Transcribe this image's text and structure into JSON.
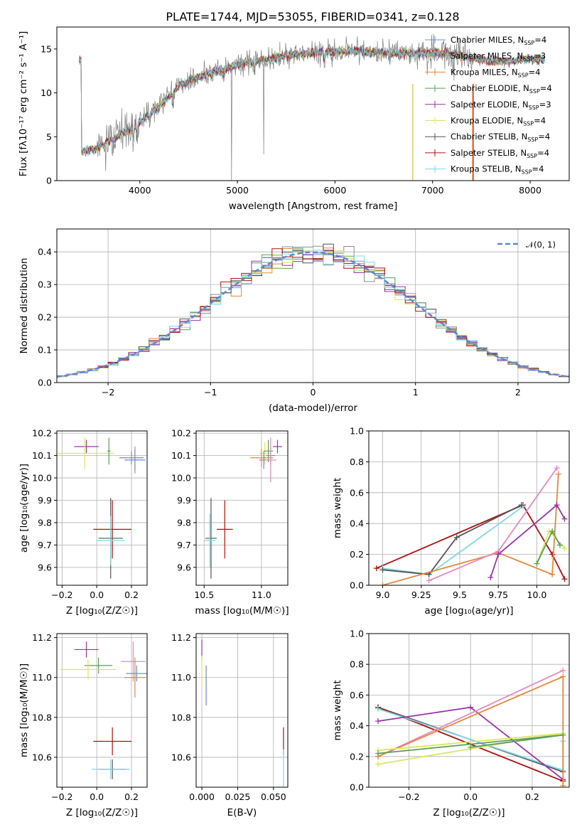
{
  "title": "PLATE=1744, MJD=53055, FIBERID=0341, z=0.128",
  "colors": {
    "Chabrier MILES": "#6b8fd6",
    "Salpeter MILES": "#8a8a8a",
    "Kroupa MILES": "#e8863a",
    "Chabrier ELODIE": "#5e9c5a",
    "Salpeter ELODIE": "#9933aa",
    "Kroupa ELODIE": "#d8e860",
    "Chabrier STELIB": "#555555",
    "Salpeter STELIB": "#b01010",
    "Kroupa STELIB": "#80d8e6"
  },
  "chart_data": [
    {
      "id": "spectrum",
      "type": "line",
      "title": "PLATE=1744, MJD=53055, FIBERID=0341, z=0.128",
      "xlabel": "wavelength [Angstrom, rest frame]",
      "ylabel": "Flux [fλ10⁻¹⁷ erg cm⁻² s⁻¹ A⁻¹]",
      "xlim": [
        3150,
        8400
      ],
      "ylim": [
        0,
        17.5
      ],
      "xticks": [
        4000,
        5000,
        6000,
        7000,
        8000
      ],
      "yticks": [
        0,
        5,
        10,
        15
      ],
      "grid": false,
      "legend_position": "right",
      "legend": [
        {
          "name": "Chabrier MILES",
          "nssp": "4"
        },
        {
          "name": "Salpeter MILES",
          "nssp": "3"
        },
        {
          "name": "Kroupa MILES",
          "nssp": "4"
        },
        {
          "name": "Chabrier ELODIE",
          "nssp": "4"
        },
        {
          "name": "Salpeter ELODIE",
          "nssp": "3"
        },
        {
          "name": "Kroupa ELODIE",
          "nssp": "4"
        },
        {
          "name": "Chabrier STELIB",
          "nssp": "4"
        },
        {
          "name": "Salpeter STELIB",
          "nssp": "4"
        },
        {
          "name": "Kroupa STELIB",
          "nssp": "4"
        }
      ],
      "continuum": [
        [
          3400,
          3.3
        ],
        [
          3550,
          3.6
        ],
        [
          3700,
          4.6
        ],
        [
          3850,
          5.5
        ],
        [
          3950,
          6.2
        ],
        [
          4100,
          7.6
        ],
        [
          4250,
          9.0
        ],
        [
          4400,
          10.8
        ],
        [
          4550,
          11.6
        ],
        [
          4700,
          12.2
        ],
        [
          4850,
          12.6
        ],
        [
          5000,
          13.2
        ],
        [
          5200,
          13.6
        ],
        [
          5400,
          14.0
        ],
        [
          5600,
          14.4
        ],
        [
          5800,
          14.6
        ],
        [
          6000,
          14.7
        ],
        [
          6200,
          14.8
        ],
        [
          6400,
          14.6
        ],
        [
          6600,
          14.5
        ],
        [
          6800,
          14.5
        ],
        [
          7000,
          14.6
        ],
        [
          7200,
          14.4
        ],
        [
          7400,
          14.0
        ],
        [
          7600,
          13.6
        ],
        [
          7800,
          13.6
        ],
        [
          8000,
          13.8
        ],
        [
          8150,
          13.8
        ]
      ]
    },
    {
      "id": "residuals",
      "type": "line",
      "xlabel": "(data-model)/error",
      "ylabel": "Normed distribution",
      "xlim": [
        -2.5,
        2.5
      ],
      "ylim": [
        0,
        0.47
      ],
      "xticks": [
        -2,
        -1,
        0,
        1,
        2
      ],
      "yticks": [
        0.0,
        0.1,
        0.2,
        0.3,
        0.4
      ],
      "grid": true,
      "legend_position": "top-right",
      "reference_label": "𝒩(0, 1)",
      "bin_width": 0.1
    },
    {
      "id": "age-vs-z",
      "type": "scatter",
      "xlabel": "Z [log₁₀(Z/Z☉)]",
      "ylabel": "age  [log₁₀(age/yr)]",
      "xlim": [
        -0.23,
        0.29
      ],
      "ylim": [
        9.52,
        10.21
      ],
      "xticks": [
        -0.2,
        0.0,
        0.2
      ],
      "yticks": [
        9.6,
        9.7,
        9.8,
        9.9,
        10.0,
        10.1,
        10.2
      ],
      "grid": true,
      "points": [
        {
          "model": "Salpeter ELODIE",
          "x": -0.06,
          "y": 10.14,
          "xerr": 0.07,
          "yerr": 0.03
        },
        {
          "model": "Kroupa ELODIE",
          "x": -0.07,
          "y": 10.11,
          "xerr": 0.17,
          "yerr": 0.07
        },
        {
          "model": "Chabrier ELODIE",
          "x": 0.07,
          "y": 10.12,
          "xerr": 0.01,
          "yerr": 0.06
        },
        {
          "model": "Salpeter MILES",
          "x": 0.2,
          "y": 10.09,
          "xerr": 0.07,
          "yerr": 0.03
        },
        {
          "model": "Kroupa MILES",
          "x": 0.22,
          "y": 10.08,
          "xerr": 0.02,
          "yerr": 0.06
        },
        {
          "model": "Chabrier MILES",
          "x": 0.22,
          "y": 10.08,
          "xerr": 0.06,
          "yerr": 0.05
        },
        {
          "model": "Salpeter STELIB",
          "x": 0.09,
          "y": 9.77,
          "xerr": 0.11,
          "yerr": 0.13
        },
        {
          "model": "Chabrier STELIB",
          "x": 0.08,
          "y": 9.73,
          "xerr": 0.07,
          "yerr": 0.18
        },
        {
          "model": "Kroupa STELIB",
          "x": 0.08,
          "y": 9.72,
          "xerr": 0.08,
          "yerr": 0.11
        }
      ]
    },
    {
      "id": "age-vs-mass",
      "type": "scatter",
      "xlabel": "mass [log₁₀(M/M☉)]",
      "ylabel": "",
      "xlim": [
        10.43,
        11.23
      ],
      "ylim": [
        9.52,
        10.21
      ],
      "xticks": [
        10.5,
        11.0
      ],
      "yticks": [
        9.6,
        9.7,
        9.8,
        9.9,
        10.0,
        10.1,
        10.2
      ],
      "grid": true,
      "points": [
        {
          "model": "Salpeter ELODIE",
          "x": 11.14,
          "y": 10.14,
          "xerr": 0.04,
          "yerr": 0.03
        },
        {
          "model": "Kroupa ELODIE",
          "x": 11.03,
          "y": 10.11,
          "xerr": 0.05,
          "yerr": 0.05
        },
        {
          "model": "Chabrier ELODIE",
          "x": 11.06,
          "y": 10.12,
          "xerr": 0.04,
          "yerr": 0.05
        },
        {
          "model": "Salpeter MILES",
          "x": 11.08,
          "y": 10.1,
          "xerr": 0.04,
          "yerr": 0.04
        },
        {
          "model": "Kroupa MILES",
          "x": 11.0,
          "y": 10.09,
          "xerr": 0.1,
          "yerr": 0.04
        },
        {
          "model": "Chabrier MILES",
          "x": 11.02,
          "y": 10.08,
          "xerr": 0.04,
          "yerr": 0.04
        },
        {
          "model": "Salpeter MILES pink",
          "x": 11.08,
          "y": 10.08,
          "xerr": 0.05,
          "yerr": 0.1
        },
        {
          "model": "Salpeter STELIB",
          "x": 10.68,
          "y": 9.77,
          "xerr": 0.07,
          "yerr": 0.13
        },
        {
          "model": "Chabrier STELIB",
          "x": 10.56,
          "y": 9.73,
          "xerr": 0.05,
          "yerr": 0.18
        },
        {
          "model": "Kroupa STELIB",
          "x": 10.55,
          "y": 9.72,
          "xerr": 0.05,
          "yerr": 0.12
        }
      ]
    },
    {
      "id": "weight-vs-age",
      "type": "line",
      "xlabel": "age  [log₁₀(age/yr)]",
      "ylabel": "mass weight",
      "xlim": [
        8.91,
        10.21
      ],
      "ylim": [
        0,
        1
      ],
      "xticks": [
        9.0,
        9.25,
        9.5,
        9.75,
        10.0
      ],
      "yticks": [
        0.0,
        0.2,
        0.4,
        0.6,
        0.8,
        1.0
      ],
      "grid": true,
      "series": [
        {
          "model": "Salpeter STELIB",
          "points": [
            [
              8.96,
              0.11
            ],
            [
              9.91,
              0.52
            ],
            [
              10.1,
              0.2
            ],
            [
              10.18,
              0.04
            ]
          ]
        },
        {
          "model": "Kroupa STELIB",
          "points": [
            [
              9.0,
              0.11
            ],
            [
              9.3,
              0.07
            ],
            [
              9.91,
              0.51
            ]
          ]
        },
        {
          "model": "Chabrier STELIB",
          "points": [
            [
              9.0,
              0.1
            ],
            [
              9.3,
              0.07
            ],
            [
              9.48,
              0.31
            ],
            [
              9.9,
              0.52
            ]
          ]
        },
        {
          "model": "Kroupa MILES",
          "points": [
            [
              9.0,
              0.0
            ],
            [
              9.75,
              0.21
            ],
            [
              10.1,
              0.07
            ],
            [
              10.14,
              0.72
            ]
          ]
        },
        {
          "model": "Salpeter MILES pink",
          "points": [
            [
              9.3,
              0.03
            ],
            [
              9.75,
              0.22
            ],
            [
              10.13,
              0.76
            ]
          ]
        },
        {
          "model": "Salpeter ELODIE",
          "points": [
            [
              9.7,
              0.05
            ],
            [
              9.75,
              0.2
            ],
            [
              10.13,
              0.52
            ],
            [
              10.18,
              0.43
            ]
          ]
        },
        {
          "model": "Kroupa ELODIE",
          "points": [
            [
              10.0,
              0.14
            ],
            [
              10.08,
              0.35
            ],
            [
              10.18,
              0.24
            ]
          ]
        },
        {
          "model": "Chabrier ELODIE",
          "points": [
            [
              10.0,
              0.14
            ],
            [
              10.1,
              0.35
            ],
            [
              10.15,
              0.26
            ]
          ]
        }
      ]
    },
    {
      "id": "mass-vs-z",
      "type": "scatter",
      "xlabel": "Z [log₁₀(Z/Z☉)]",
      "ylabel": "mass [log₁₀(M/M☉)]",
      "xlim": [
        -0.23,
        0.29
      ],
      "ylim": [
        10.45,
        11.22
      ],
      "xticks": [
        -0.2,
        0.0,
        0.2
      ],
      "yticks": [
        10.6,
        10.8,
        11.0,
        11.2
      ],
      "grid": true,
      "points": [
        {
          "model": "Salpeter ELODIE",
          "x": -0.06,
          "y": 11.14,
          "xerr": 0.07,
          "yerr": 0.04
        },
        {
          "model": "Chabrier ELODIE",
          "x": 0.01,
          "y": 11.06,
          "xerr": 0.08,
          "yerr": 0.04
        },
        {
          "model": "Kroupa ELODIE",
          "x": -0.05,
          "y": 11.04,
          "xerr": 0.16,
          "yerr": 0.05
        },
        {
          "model": "Salpeter MILES pink",
          "x": 0.21,
          "y": 11.08,
          "xerr": 0.07,
          "yerr": 0.1
        },
        {
          "model": "Chabrier MILES",
          "x": 0.23,
          "y": 11.02,
          "xerr": 0.06,
          "yerr": 0.04
        },
        {
          "model": "Kroupa MILES",
          "x": 0.22,
          "y": 11.0,
          "xerr": 0.06,
          "yerr": 0.1
        },
        {
          "model": "Salpeter STELIB",
          "x": 0.09,
          "y": 10.68,
          "xerr": 0.11,
          "yerr": 0.07
        },
        {
          "model": "Chabrier STELIB",
          "x": 0.09,
          "y": 10.54,
          "xerr": 0.08,
          "yerr": 0.05
        },
        {
          "model": "Kroupa STELIB",
          "x": 0.08,
          "y": 10.54,
          "xerr": 0.11,
          "yerr": 0.05
        }
      ]
    },
    {
      "id": "mass-vs-ebv",
      "type": "scatter",
      "xlabel": "E(B-V)",
      "ylabel": "",
      "xlim": [
        -0.004,
        0.06
      ],
      "ylim": [
        10.45,
        11.22
      ],
      "xticks": [
        0.0,
        0.025,
        0.05
      ],
      "yticks": [
        10.6,
        10.8,
        11.0,
        11.2
      ],
      "grid": true,
      "points": [
        {
          "model": "Salpeter ELODIE",
          "x": 0.0,
          "y": 11.14,
          "xerr": 0.0,
          "yerr": 0.05
        },
        {
          "model": "Kroupa ELODIE",
          "x": 0.0,
          "y": 11.03,
          "xerr": 0.0,
          "yerr": 0.08
        },
        {
          "model": "Chabrier MILES",
          "x": 0.003,
          "y": 10.96,
          "xerr": 0.0,
          "yerr": 0.1
        },
        {
          "model": "Salpeter STELIB",
          "x": 0.057,
          "y": 10.68,
          "xerr": 0.0,
          "yerr": 0.07
        },
        {
          "model": "Kroupa STELIB",
          "x": 0.057,
          "y": 10.54,
          "xerr": 0.0,
          "yerr": 0.1
        }
      ]
    },
    {
      "id": "weight-vs-z",
      "type": "line",
      "xlabel": "Z [log₁₀(Z/Z☉)]",
      "ylabel": "mass weight",
      "xlim": [
        -0.33,
        0.32
      ],
      "ylim": [
        0,
        1
      ],
      "xticks": [
        -0.2,
        0.0,
        0.2
      ],
      "yticks": [
        0.0,
        0.2,
        0.4,
        0.6,
        0.8,
        1.0
      ],
      "grid": true,
      "series": [
        {
          "model": "Chabrier STELIB",
          "points": [
            [
              -0.3,
              0.52
            ],
            [
              0.3,
              0.1
            ]
          ]
        },
        {
          "model": "Salpeter STELIB",
          "points": [
            [
              -0.3,
              0.52
            ],
            [
              0.3,
              0.04
            ]
          ]
        },
        {
          "model": "Kroupa STELIB",
          "points": [
            [
              -0.3,
              0.51
            ],
            [
              0.3,
              0.11
            ],
            [
              0.3,
              0.3
            ]
          ]
        },
        {
          "model": "Salpeter ELODIE",
          "points": [
            [
              -0.3,
              0.43
            ],
            [
              0.0,
              0.52
            ],
            [
              0.3,
              0.05
            ]
          ]
        },
        {
          "model": "Salpeter MILES pink",
          "points": [
            [
              -0.3,
              0.2
            ],
            [
              0.3,
              0.76
            ]
          ]
        },
        {
          "model": "Kroupa MILES",
          "points": [
            [
              -0.3,
              0.2
            ],
            [
              0.3,
              0.72
            ],
            [
              0.3,
              0.01
            ]
          ]
        },
        {
          "model": "Kroupa ELODIE",
          "points": [
            [
              -0.3,
              0.24
            ],
            [
              0.3,
              0.35
            ],
            [
              -0.3,
              0.15
            ]
          ]
        },
        {
          "model": "Chabrier ELODIE",
          "points": [
            [
              -0.3,
              0.22
            ],
            [
              0.3,
              0.34
            ],
            [
              0.0,
              0.26
            ]
          ]
        }
      ]
    }
  ]
}
